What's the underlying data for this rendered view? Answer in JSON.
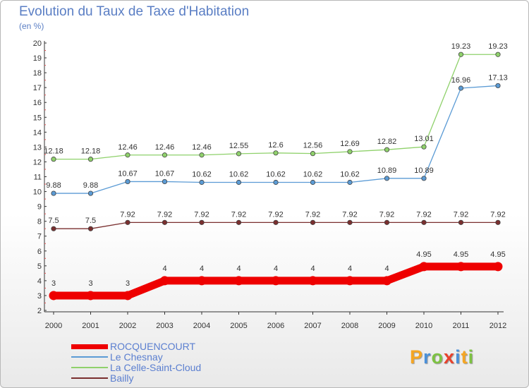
{
  "title": "Evolution du Taux de Taxe d'Habitation",
  "subtitle": "(en %)",
  "logo": {
    "text": "Proxiti",
    "letter_colors": [
      "#f5a623",
      "#4a90d9",
      "#7dc242",
      "#e8412c",
      "#4a90d9",
      "#f5a623",
      "#7dc242"
    ]
  },
  "chart_data": {
    "type": "line",
    "x": [
      "2000",
      "2001",
      "2002",
      "2003",
      "2004",
      "2005",
      "2006",
      "2007",
      "2008",
      "2009",
      "2010",
      "2011",
      "2012"
    ],
    "ylim": [
      2,
      20
    ],
    "yticks": [
      2,
      3,
      4,
      5,
      6,
      7,
      8,
      9,
      10,
      11,
      12,
      13,
      14,
      15,
      16,
      17,
      18,
      19,
      20
    ],
    "grid": false,
    "legend_position": "bottom-left",
    "series": [
      {
        "name": "ROCQUENCOURT",
        "color": "#ee0000",
        "emphasis": true,
        "values": [
          3,
          3,
          3,
          4,
          4,
          4,
          4,
          4,
          4,
          4,
          4.95,
          4.95,
          4.95
        ],
        "labels": [
          "3",
          "3",
          "3",
          "4",
          "4",
          "4",
          "4",
          "4",
          "4",
          "4",
          "4.95",
          "4.95",
          "4.95"
        ]
      },
      {
        "name": "Le Chesnay",
        "color": "#5b9bd5",
        "values": [
          9.88,
          9.88,
          10.67,
          10.67,
          10.62,
          10.62,
          10.62,
          10.62,
          10.62,
          10.89,
          10.89,
          16.96,
          17.13
        ],
        "labels": [
          "9.88",
          "9.88",
          "10.67",
          "10.67",
          "10.62",
          "10.62",
          "10.62",
          "10.62",
          "10.62",
          "10.89",
          "10.89",
          "16.96",
          "17.13"
        ]
      },
      {
        "name": "La Celle-Saint-Cloud",
        "color": "#8fd16b",
        "values": [
          12.18,
          12.18,
          12.46,
          12.46,
          12.46,
          12.55,
          12.6,
          12.56,
          12.69,
          12.82,
          13.01,
          19.23,
          19.23
        ],
        "labels": [
          "12.18",
          "12.18",
          "12.46",
          "12.46",
          "12.46",
          "12.55",
          "12.6",
          "12.56",
          "12.69",
          "12.82",
          "13.01",
          "19.23",
          "19.23"
        ]
      },
      {
        "name": "Bailly",
        "color": "#7a2f2f",
        "values": [
          7.5,
          7.5,
          7.92,
          7.92,
          7.92,
          7.92,
          7.92,
          7.92,
          7.92,
          7.92,
          7.92,
          7.92,
          7.92
        ],
        "labels": [
          "7.5",
          "7.5",
          "7.92",
          "7.92",
          "7.92",
          "7.92",
          "7.92",
          "7.92",
          "7.92",
          "7.92",
          "7.92",
          "7.92",
          "7.92"
        ]
      }
    ]
  }
}
